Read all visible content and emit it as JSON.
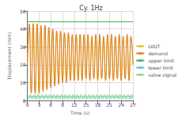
{
  "chart_data": {
    "type": "line",
    "title": "Cy. 1Hz",
    "x_label": "Time (s)",
    "y_label": "Displacement (mm)",
    "x": [
      0,
      0.5,
      1,
      1.5,
      2,
      2.5,
      3,
      3.5,
      4,
      4.5,
      5,
      5.5,
      6,
      6.5,
      7,
      7.5,
      8,
      8.5,
      9,
      9.5,
      10,
      10.5,
      11,
      11.5,
      12,
      12.5,
      13,
      13.5,
      14,
      14.5,
      15,
      15.5,
      16,
      16.5,
      17,
      17.5,
      18,
      18.5,
      19,
      19.5,
      20,
      20.5,
      21,
      21.5,
      22,
      22.5,
      23,
      23.5,
      24,
      24.5,
      25,
      25.5,
      26,
      26.5,
      27
    ],
    "series": [
      {
        "name": "LVDT",
        "color": "#e8c21a",
        "values": [
          20,
          42,
          5,
          43,
          4,
          42,
          5,
          41,
          6,
          42,
          7,
          40,
          8,
          39,
          9,
          38,
          10,
          38,
          11,
          37,
          11,
          37,
          12,
          36,
          12,
          36,
          12,
          37,
          12,
          36,
          13,
          36,
          12,
          35,
          13,
          36,
          12,
          36,
          13,
          35,
          12,
          36,
          13,
          36,
          12,
          35,
          13,
          36,
          12,
          35,
          13,
          36,
          12,
          35,
          20
        ]
      },
      {
        "name": "demand",
        "color": "#e07b22",
        "values": [
          20,
          43,
          4,
          43,
          4,
          43,
          4,
          42,
          5,
          42,
          6,
          41,
          7,
          40,
          8,
          39,
          9,
          39,
          10,
          38,
          10,
          38,
          11,
          37,
          11,
          37,
          11,
          37,
          11,
          37,
          12,
          37,
          11,
          36,
          12,
          37,
          11,
          37,
          12,
          36,
          11,
          37,
          12,
          37,
          11,
          36,
          12,
          37,
          11,
          36,
          12,
          37,
          11,
          36,
          20
        ]
      },
      {
        "name": "upper limit",
        "color": "#3cb44b",
        "x": [
          0,
          27
        ],
        "values": [
          44,
          44
        ]
      },
      {
        "name": "lower limit",
        "color": "#4bc8d8",
        "x": [
          0,
          27
        ],
        "values": [
          2,
          2
        ]
      },
      {
        "name": "valve signal",
        "color": "#8fd18f",
        "line_style": "step",
        "values": [
          1,
          3,
          1,
          3,
          1,
          3,
          1,
          3,
          1,
          3,
          1,
          3,
          1,
          3,
          1,
          3,
          1,
          3,
          1,
          3,
          1,
          3,
          1,
          3,
          1,
          3,
          1,
          3,
          1,
          3,
          1,
          3,
          1,
          3,
          1,
          3,
          1,
          3,
          1,
          3,
          1,
          3,
          1,
          3,
          1,
          3,
          1,
          3,
          1,
          3,
          1,
          3,
          1,
          3,
          1
        ]
      }
    ],
    "xlim": [
      0,
      27
    ],
    "xticks": [
      0,
      3,
      6,
      9,
      12,
      15,
      18,
      21,
      24,
      27
    ],
    "ylim": [
      0,
      50
    ],
    "yticks": [
      0,
      10,
      20,
      30,
      40,
      50
    ],
    "grid": true,
    "legend": "right"
  }
}
